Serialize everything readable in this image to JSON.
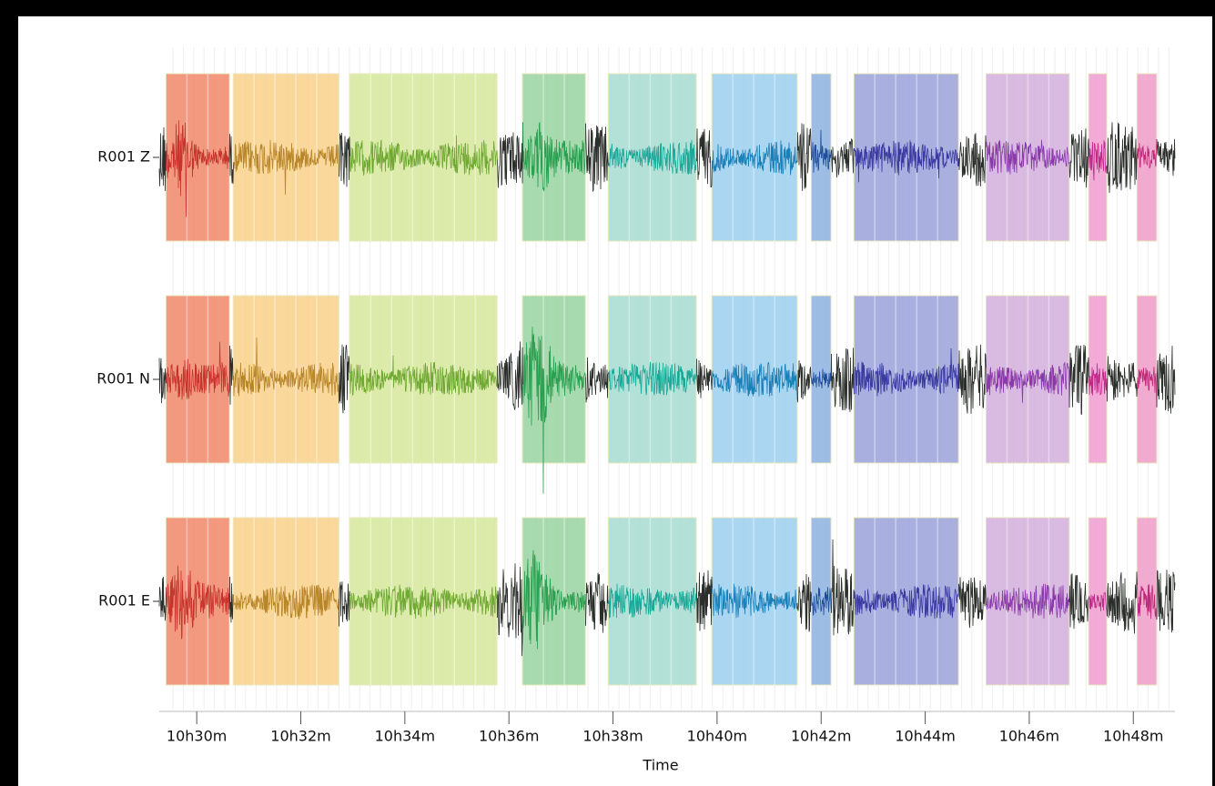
{
  "chart_data": {
    "type": "seismogram",
    "traces": [
      "R001 Z",
      "R001 N",
      "R001 E"
    ],
    "x_label": "Time",
    "xlim": [
      29.28,
      48.8
    ],
    "xticks": [
      {
        "value": 30,
        "label": "10h30m"
      },
      {
        "value": 32,
        "label": "10h32m"
      },
      {
        "value": 34,
        "label": "10h34m"
      },
      {
        "value": 36,
        "label": "10h36m"
      },
      {
        "value": 38,
        "label": "10h38m"
      },
      {
        "value": 40,
        "label": "10h40m"
      },
      {
        "value": 42,
        "label": "10h42m"
      },
      {
        "value": 44,
        "label": "10h44m"
      },
      {
        "value": 46,
        "label": "10h46m"
      },
      {
        "value": 48,
        "label": "10h48m"
      }
    ],
    "trace_color": "#2b2f2b",
    "windows": [
      {
        "start": 29.41,
        "end": 30.63,
        "color": "#f0876a",
        "wave_color": "#c8342c"
      },
      {
        "start": 30.7,
        "end": 32.73,
        "color": "#f9d08a",
        "wave_color": "#b8862a"
      },
      {
        "start": 32.94,
        "end": 35.77,
        "color": "#d6e89a",
        "wave_color": "#6fa832"
      },
      {
        "start": 36.26,
        "end": 37.47,
        "color": "#98d4a0",
        "wave_color": "#2aa050"
      },
      {
        "start": 37.91,
        "end": 39.6,
        "color": "#a6dcd0",
        "wave_color": "#1aa898"
      },
      {
        "start": 39.9,
        "end": 41.54,
        "color": "#9ccfee",
        "wave_color": "#1a80b8"
      },
      {
        "start": 41.81,
        "end": 42.19,
        "color": "#8cb2e0",
        "wave_color": "#1f4e98"
      },
      {
        "start": 42.63,
        "end": 44.64,
        "color": "#9aa2da",
        "wave_color": "#3a3aa0"
      },
      {
        "start": 45.17,
        "end": 46.77,
        "color": "#d2aedc",
        "wave_color": "#8a3aa8"
      },
      {
        "start": 47.14,
        "end": 47.49,
        "color": "#f09cd0",
        "wave_color": "#c02a8a"
      },
      {
        "start": 48.07,
        "end": 48.45,
        "color": "#f09cc8",
        "wave_color": "#c02a7a"
      }
    ]
  }
}
